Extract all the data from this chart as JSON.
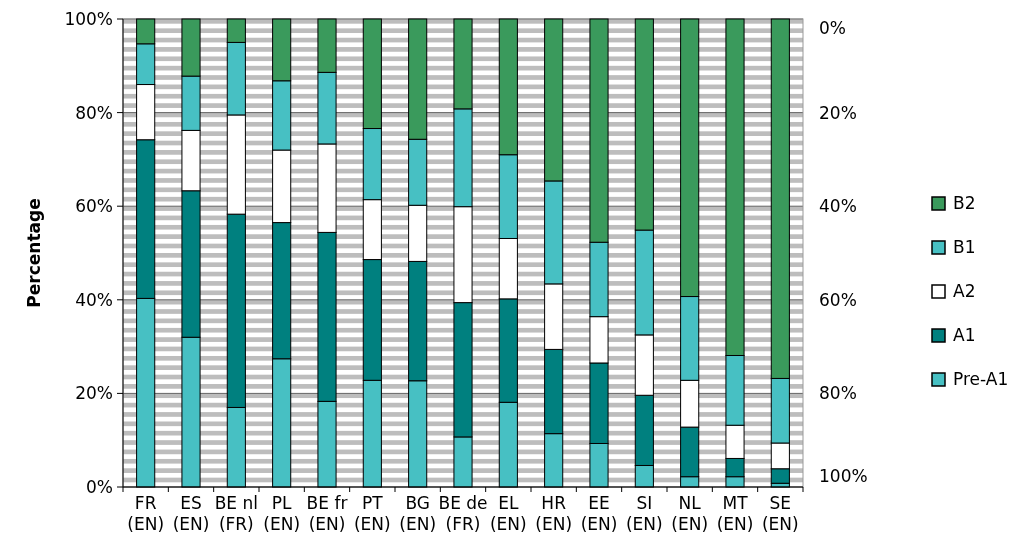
{
  "chart_data": {
    "type": "bar",
    "stacked": true,
    "ylabel": "Percentage",
    "categories": [
      "FR (EN)",
      "ES (EN)",
      "BE nl (FR)",
      "PL (EN)",
      "BE fr (EN)",
      "PT (EN)",
      "BG (EN)",
      "BE de (FR)",
      "EL (EN)",
      "HR (EN)",
      "EE (EN)",
      "SI (EN)",
      "NL (EN)",
      "MT (EN)",
      "SE (EN)"
    ],
    "series": [
      {
        "name": "Pre-A1",
        "color": "#47c0c3",
        "values": [
          40.3,
          32,
          17,
          27.4,
          18.3,
          22.8,
          22.7,
          10.7,
          18.1,
          11.4,
          9.3,
          4.6,
          2.2,
          2.2,
          0.8
        ]
      },
      {
        "name": "A1",
        "color": "#00807f",
        "values": [
          33.9,
          31.3,
          41.3,
          29.1,
          36.1,
          25.8,
          25.5,
          28.7,
          22.1,
          18,
          17.2,
          15,
          10.6,
          3.9,
          3.1
        ]
      },
      {
        "name": "A2",
        "color": "#ffffff",
        "values": [
          11.8,
          12.9,
          21.2,
          15.5,
          18.9,
          12.8,
          12,
          20.5,
          12.9,
          14,
          9.9,
          12.9,
          10,
          7.1,
          5.5
        ]
      },
      {
        "name": "B1",
        "color": "#47c0c3",
        "values": [
          8.7,
          11.6,
          15.5,
          14.8,
          15.3,
          15.2,
          14.1,
          20.9,
          17.9,
          22,
          15.9,
          22.4,
          17.9,
          14.9,
          13.8
        ]
      },
      {
        "name": "B2",
        "color": "#3a9a5c",
        "values": [
          5.3,
          12.2,
          5,
          13.2,
          11.4,
          23.4,
          25.7,
          19.2,
          29,
          34.6,
          47.7,
          45.1,
          59.3,
          71.9,
          76.8
        ]
      }
    ],
    "ylim": [
      0,
      100
    ],
    "yticks": [
      {
        "value": 0,
        "label": "0%"
      },
      {
        "value": 20,
        "label": "20%"
      },
      {
        "value": 40,
        "label": "40%"
      },
      {
        "value": 60,
        "label": "60%"
      },
      {
        "value": 80,
        "label": "80%"
      },
      {
        "value": 100,
        "label": "100%"
      }
    ],
    "y2lim": [
      100,
      0
    ],
    "y2ticks": [
      {
        "value": 0,
        "label": "0%"
      },
      {
        "value": 20,
        "label": "20%"
      },
      {
        "value": 40,
        "label": "40%"
      },
      {
        "value": 60,
        "label": "60%"
      },
      {
        "value": 80,
        "label": "80%"
      },
      {
        "value": 100,
        "label": "100%"
      }
    ],
    "grid": "y",
    "legend": "right"
  }
}
